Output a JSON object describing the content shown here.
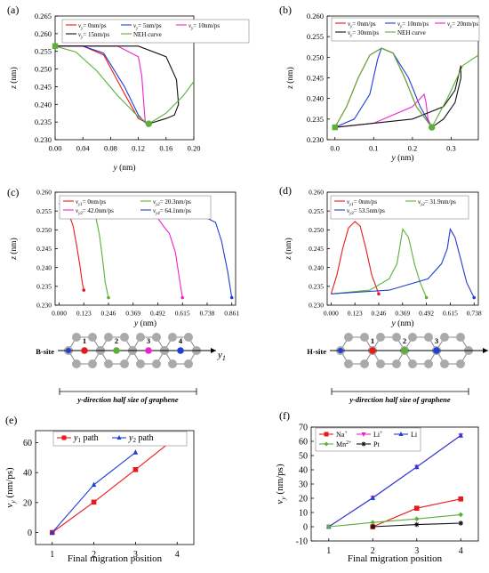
{
  "panels": [
    {
      "letter": "(a)",
      "chart_data": {
        "type": "line",
        "xlabel": "y (nm)",
        "ylabel": "z (nm)",
        "xlim": [
          0.0,
          0.2
        ],
        "ylim": [
          0.23,
          0.265
        ],
        "xticks": [
          "0.00",
          "0.04",
          "0.08",
          "0.12",
          "0.16",
          "0.20"
        ],
        "yticks": [
          "0.230",
          "0.235",
          "0.240",
          "0.245",
          "0.250",
          "0.255",
          "0.260",
          "0.265"
        ],
        "legend": [
          "vy= 0nm/ps",
          "vy= 5nm/ps",
          "vy= 10nm/ps",
          "vy= 15nm/ps",
          "NEH curve"
        ],
        "legend_colors": [
          "#e8191b",
          "#1f3fd6",
          "#ee22cc",
          "#111111",
          "#5bb035"
        ],
        "series": [
          {
            "name": "vy= 0nm/ps",
            "color": "#e8191b",
            "x": [
              0,
              0.04,
              0.07,
              0.1,
              0.12,
              0.135
            ],
            "y": [
              0.2565,
              0.2565,
              0.254,
              0.243,
              0.236,
              0.2345
            ]
          },
          {
            "name": "vy= 5nm/ps",
            "color": "#1f3fd6",
            "x": [
              0,
              0.04,
              0.07,
              0.1,
              0.12,
              0.13,
              0.135
            ],
            "y": [
              0.2565,
              0.2565,
              0.2545,
              0.245,
              0.237,
              0.2348,
              0.2345
            ]
          },
          {
            "name": "vy= 10nm/ps",
            "color": "#ee22cc",
            "x": [
              0,
              0.09,
              0.12,
              0.125,
              0.128,
              0.13,
              0.135
            ],
            "y": [
              0.2565,
              0.2565,
              0.2535,
              0.248,
              0.24,
              0.235,
              0.2345
            ]
          },
          {
            "name": "vy= 15nm/ps",
            "color": "#111111",
            "x": [
              0,
              0.12,
              0.16,
              0.175,
              0.178,
              0.172,
              0.16,
              0.135
            ],
            "y": [
              0.2565,
              0.2565,
              0.2535,
              0.247,
              0.24,
              0.237,
              0.236,
              0.2345
            ]
          },
          {
            "name": "NEH curve",
            "color": "#5bb035",
            "x": [
              0,
              0.03,
              0.06,
              0.09,
              0.12,
              0.135,
              0.16,
              0.185,
              0.2
            ],
            "y": [
              0.2565,
              0.2548,
              0.2495,
              0.2425,
              0.2365,
              0.2345,
              0.2375,
              0.2425,
              0.2465
            ]
          }
        ],
        "markers": [
          {
            "x": 0,
            "y": 0.2565,
            "shape": "square",
            "color": "#5bb035"
          },
          {
            "x": 0.135,
            "y": 0.2345,
            "shape": "circle",
            "color": "#5bb035"
          }
        ]
      }
    },
    {
      "letter": "(b)",
      "chart_data": {
        "type": "line",
        "xlabel": "y (nm)",
        "ylabel": "z (nm)",
        "xlim": [
          -0.02,
          0.37
        ],
        "ylim": [
          0.23,
          0.26
        ],
        "xticks": [
          "0.0",
          "0.1",
          "0.2",
          "0.3"
        ],
        "yticks": [
          "0.230",
          "0.235",
          "0.240",
          "0.245",
          "0.250",
          "0.255",
          "0.260"
        ],
        "legend": [
          "vy= 0nm/ps",
          "vy= 10nm/ps",
          "vy= 20nm/ps",
          "vy= 30nm/ps",
          "NEH curve"
        ],
        "legend_colors": [
          "#e8191b",
          "#1f3fd6",
          "#ee22cc",
          "#111111",
          "#5bb035"
        ],
        "series": [
          {
            "name": "vy= 0nm/ps",
            "color": "#e8191b",
            "x": [
              0,
              0.03,
              0.06,
              0.09,
              0.12,
              0.15,
              0.18,
              0.21,
              0.25
            ],
            "y": [
              0.233,
              0.238,
              0.245,
              0.2505,
              0.2522,
              0.251,
              0.245,
              0.238,
              0.233
            ]
          },
          {
            "name": "vy= 10nm/ps",
            "color": "#1f3fd6",
            "x": [
              0,
              0.05,
              0.09,
              0.11,
              0.12,
              0.15,
              0.19,
              0.22,
              0.25
            ],
            "y": [
              0.233,
              0.235,
              0.241,
              0.2495,
              0.2522,
              0.251,
              0.245,
              0.238,
              0.233
            ]
          },
          {
            "name": "vy= 20nm/ps",
            "color": "#ee22cc",
            "x": [
              0,
              0.1,
              0.2,
              0.225,
              0.23,
              0.235,
              0.24,
              0.25
            ],
            "y": [
              0.233,
              0.234,
              0.238,
              0.2405,
              0.241,
              0.239,
              0.235,
              0.233
            ]
          },
          {
            "name": "vy= 30nm/ps",
            "color": "#111111",
            "x": [
              0,
              0.2,
              0.28,
              0.31,
              0.325,
              0.325,
              0.31,
              0.28,
              0.25
            ],
            "y": [
              0.233,
              0.235,
              0.238,
              0.242,
              0.248,
              0.245,
              0.239,
              0.235,
              0.233
            ]
          },
          {
            "name": "NEH curve",
            "color": "#5bb035",
            "x": [
              0,
              0.03,
              0.06,
              0.09,
              0.12,
              0.15,
              0.18,
              0.21,
              0.25,
              0.29,
              0.33,
              0.37
            ],
            "y": [
              0.233,
              0.238,
              0.245,
              0.2505,
              0.2522,
              0.251,
              0.245,
              0.238,
              0.233,
              0.24,
              0.248,
              0.2505
            ]
          }
        ],
        "markers": [
          {
            "x": 0,
            "y": 0.233,
            "shape": "square",
            "color": "#5bb035"
          },
          {
            "x": 0.25,
            "y": 0.233,
            "shape": "circle",
            "color": "#5bb035"
          }
        ]
      }
    },
    {
      "letter": "(c)",
      "chart_data": {
        "type": "line",
        "xlabel": "y (nm)",
        "ylabel": "z (nm)",
        "xlim": [
          -0.02,
          0.88
        ],
        "ylim": [
          0.23,
          0.26
        ],
        "xticks": [
          "0.000",
          "0.123",
          "0.246",
          "0.369",
          "0.492",
          "0.615",
          "0.738",
          "0.861"
        ],
        "yticks": [
          "0.230",
          "0.235",
          "0.240",
          "0.245",
          "0.250",
          "0.255",
          "0.260"
        ],
        "legend": [
          "vy1= 0nm/ps",
          "vy2= 20.3nm/ps",
          "vy3= 42.0nm/ps",
          "vy4= 64.1nm/ps"
        ],
        "legend_colors": [
          "#e8191b",
          "#5bb035",
          "#ee22cc",
          "#1f3fd6"
        ],
        "series": [
          {
            "name": "vy1= 0nm/ps",
            "color": "#e8191b",
            "x": [
              0,
              0.04,
              0.07,
              0.09,
              0.105,
              0.115,
              0.123
            ],
            "y": [
              0.257,
              0.2555,
              0.251,
              0.245,
              0.24,
              0.236,
              0.234
            ]
          },
          {
            "name": "vy2= 20.3nm/ps",
            "color": "#5bb035",
            "x": [
              0,
              0.14,
              0.18,
              0.2,
              0.215,
              0.23,
              0.246
            ],
            "y": [
              0.257,
              0.2565,
              0.254,
              0.249,
              0.243,
              0.236,
              0.232
            ]
          },
          {
            "name": "vy3= 42.0nm/ps",
            "color": "#ee22cc",
            "x": [
              0,
              0.42,
              0.48,
              0.52,
              0.55,
              0.58,
              0.6,
              0.615
            ],
            "y": [
              0.257,
              0.2565,
              0.254,
              0.251,
              0.249,
              0.244,
              0.237,
              0.232
            ]
          },
          {
            "name": "vy4= 64.1nm/ps",
            "color": "#1f3fd6",
            "x": [
              0,
              0.64,
              0.7,
              0.74,
              0.78,
              0.81,
              0.84,
              0.861
            ],
            "y": [
              0.257,
              0.2565,
              0.255,
              0.253,
              0.252,
              0.247,
              0.239,
              0.232
            ]
          }
        ],
        "schematic": {
          "site": "B-site",
          "numbers": [
            "1",
            "2",
            "3",
            "4"
          ],
          "axis": "y",
          "axis_sub": "1",
          "caption": "y-direction half size of graphene"
        }
      }
    },
    {
      "letter": "(d)",
      "chart_data": {
        "type": "line",
        "xlabel": "y (nm)",
        "ylabel": "z (nm)",
        "xlim": [
          -0.02,
          0.76
        ],
        "ylim": [
          0.23,
          0.26
        ],
        "xticks": [
          "0.000",
          "0.123",
          "0.246",
          "0.369",
          "0.492",
          "0.615",
          "0.738"
        ],
        "yticks": [
          "0.230",
          "0.235",
          "0.240",
          "0.245",
          "0.250",
          "0.255",
          "0.260"
        ],
        "legend": [
          "vy1= 0nm/ps",
          "vy2= 31.9nm/ps",
          "vy3= 53.5nm/ps"
        ],
        "legend_colors": [
          "#e8191b",
          "#5bb035",
          "#1f3fd6"
        ],
        "series": [
          {
            "name": "vy1= 0nm/ps",
            "color": "#e8191b",
            "x": [
              0,
              0.03,
              0.06,
              0.09,
              0.123,
              0.15,
              0.18,
              0.21,
              0.246
            ],
            "y": [
              0.233,
              0.238,
              0.245,
              0.2505,
              0.2522,
              0.251,
              0.245,
              0.238,
              0.233
            ]
          },
          {
            "name": "vy2= 31.9nm/ps",
            "color": "#5bb035",
            "x": [
              0,
              0.2,
              0.3,
              0.34,
              0.37,
              0.4,
              0.43,
              0.46,
              0.492
            ],
            "y": [
              0.233,
              0.234,
              0.237,
              0.241,
              0.2502,
              0.248,
              0.241,
              0.236,
              0.232
            ]
          },
          {
            "name": "vy3= 53.5nm/ps",
            "color": "#1f3fd6",
            "x": [
              0,
              0.3,
              0.5,
              0.57,
              0.6,
              0.615,
              0.64,
              0.67,
              0.7,
              0.738
            ],
            "y": [
              0.233,
              0.234,
              0.237,
              0.241,
              0.245,
              0.2502,
              0.248,
              0.242,
              0.236,
              0.232
            ]
          }
        ],
        "schematic": {
          "site": "H-site",
          "numbers": [
            "1",
            "2",
            "3"
          ],
          "axis": "y",
          "axis_sub": "2",
          "caption": "y-direction half size of graphene"
        }
      }
    },
    {
      "letter": "(e)",
      "chart_data": {
        "type": "line",
        "xlabel": "Final migration position",
        "ylabel": "vy (nm/ps)",
        "xlim": [
          0.6,
          4.4
        ],
        "ylim": [
          -8,
          68
        ],
        "xticks": [
          "1",
          "2",
          "3",
          "4"
        ],
        "yticks": [
          "0",
          "20",
          "40",
          "60"
        ],
        "legend": [
          "y1 path",
          "y2 path"
        ],
        "series": [
          {
            "name": "y1 path",
            "color": "#e8191b",
            "marker": "square",
            "x": [
              1,
              2,
              3,
              4
            ],
            "y": [
              0,
              20.3,
              42.0,
              64.1
            ]
          },
          {
            "name": "y2 path",
            "color": "#1f3fd6",
            "marker": "triangle",
            "x": [
              1,
              2,
              3
            ],
            "y": [
              0,
              31.9,
              53.5
            ]
          }
        ]
      }
    },
    {
      "letter": "(f)",
      "chart_data": {
        "type": "line",
        "xlabel": "Final migration position",
        "ylabel": "vy (nm/ps)",
        "xlim": [
          0.6,
          4.4
        ],
        "ylim": [
          -10,
          70
        ],
        "xticks": [
          "1",
          "2",
          "3",
          "4"
        ],
        "yticks": [
          "-10",
          "0",
          "10",
          "20",
          "30",
          "40",
          "50",
          "60",
          "70"
        ],
        "legend": [
          "Na+",
          "Li+",
          "Li",
          "Mn2+",
          "Pt"
        ],
        "series": [
          {
            "name": "Na+",
            "color": "#e8191b",
            "marker": "square",
            "x": [
              2,
              3,
              4
            ],
            "y": [
              0,
              13,
              19.5
            ]
          },
          {
            "name": "Li+",
            "color": "#ee22cc",
            "marker": "triangle-down",
            "x": [
              1,
              2,
              3,
              4
            ],
            "y": [
              0,
              20.3,
              42.0,
              64.1
            ]
          },
          {
            "name": "Li",
            "color": "#1f3fd6",
            "marker": "triangle",
            "x": [
              1,
              2,
              3,
              4
            ],
            "y": [
              0,
              20.3,
              42.0,
              64.1
            ]
          },
          {
            "name": "Mn2+",
            "color": "#5bb035",
            "marker": "diamond",
            "x": [
              1,
              2,
              3,
              4
            ],
            "y": [
              0,
              3,
              5.5,
              8.5
            ]
          },
          {
            "name": "Pt",
            "color": "#111111",
            "marker": "star",
            "x": [
              2,
              3,
              4
            ],
            "y": [
              0,
              1.5,
              2.5
            ]
          }
        ]
      }
    }
  ]
}
